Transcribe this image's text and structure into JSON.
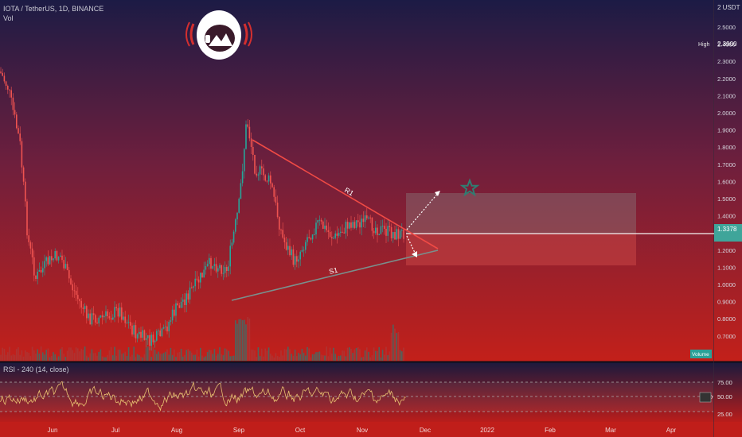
{
  "header": {
    "symbol_line": "IOTA / TetherUS, 1D, BINANCE",
    "volume_label": "Vol"
  },
  "price_axis": {
    "unit_label": "2 USDT",
    "ticks": [
      "2.5000",
      "2.4000",
      "2.3000",
      "2.2000",
      "2.1000",
      "2.0000",
      "1.9000",
      "1.8000",
      "1.7000",
      "1.6000",
      "1.5000",
      "1.4000",
      "1.3000",
      "1.2000",
      "1.1000",
      "1.0000",
      "0.9000",
      "0.8000",
      "0.7000"
    ],
    "high_label": "High",
    "high_value": "2.3900",
    "current_price": "1.3378",
    "volume_badge": "Volume"
  },
  "rsi": {
    "label": "RSI - 240 (14, close)",
    "ticks": [
      "75.00",
      "50.00",
      "25.00"
    ],
    "current_badge": "50.00"
  },
  "time_axis": {
    "labels": [
      "Jun",
      "Jul",
      "Aug",
      "Sep",
      "Oct",
      "Nov",
      "Dec",
      "2022",
      "Feb",
      "Mar",
      "Apr"
    ]
  },
  "annotations": {
    "resistance_label": "R1",
    "support_label": "S1"
  },
  "colors": {
    "up": "#26a69a",
    "down": "#ef5350",
    "bg_top": "#1c1b45",
    "bg_bottom": "#c21e1a",
    "resistance_line": "#f44336",
    "support_line": "#6b8f8a",
    "long_zone": "#7a7a7a",
    "short_zone": "#b23a3a"
  },
  "logo": {
    "icon": "astronaut-helmet-icon"
  },
  "chart_data": {
    "type": "candlestick",
    "symbol": "IOTA / TetherUS",
    "timeframe": "1D",
    "exchange": "BINANCE",
    "ylim": [
      0.65,
      2.55
    ],
    "current_price": 1.3378,
    "high": 2.39,
    "rsi_levels": [
      75,
      50,
      25
    ]
  }
}
